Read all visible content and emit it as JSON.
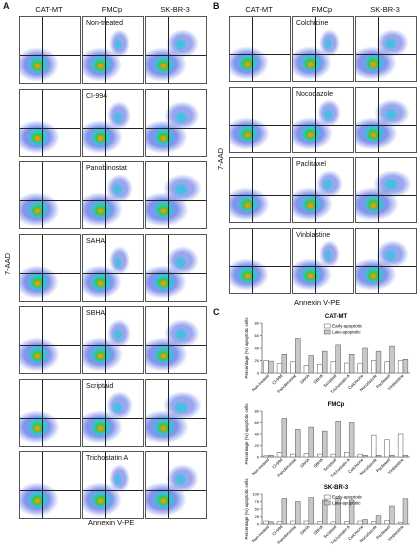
{
  "panelA": {
    "letter": "A",
    "columns": [
      "CAT-MT",
      "FMCp",
      "SK-BR-3"
    ],
    "rows": [
      "Non-treated",
      "CI-994",
      "Panobinostat",
      "SAHA",
      "SBHA",
      "Scriptaid",
      "Trichostatin A"
    ],
    "ylabel": "7-AAD",
    "xlabel": "Annexin V-PE"
  },
  "panelB": {
    "letter": "B",
    "columns": [
      "CAT-MT",
      "FMCp",
      "SK-BR-3"
    ],
    "rows": [
      "Colchicine",
      "Nocodazole",
      "Paclitaxel",
      "Vinblastine"
    ],
    "ylabel": "7-AAD",
    "xlabel": "Annexin V-PE"
  },
  "panelC": {
    "letter": "C"
  },
  "colors": {
    "early": "#ffffff",
    "late": "#c8c8c8",
    "stroke": "#555555"
  },
  "chart_data": [
    {
      "type": "bar",
      "title": "CAT-MT",
      "ylabel": "Percentage (%) apoptotic cells",
      "categories": [
        "Non-treated",
        "CI-994",
        "Panobinostat",
        "SAHA",
        "SBHA",
        "Scriptaid",
        "Trichostatin A",
        "Colchicine",
        "Nocodazole",
        "Paclitaxel",
        "Vinblastine"
      ],
      "series": [
        {
          "name": "Early-apoptotic",
          "values": [
            20,
            15,
            18,
            12,
            14,
            18,
            16,
            15,
            20,
            18,
            20
          ]
        },
        {
          "name": "Late-apoptotic",
          "values": [
            19,
            30,
            55,
            28,
            35,
            45,
            30,
            40,
            35,
            43,
            22
          ]
        }
      ],
      "ylim": [
        0,
        80
      ],
      "legend": "top-center"
    },
    {
      "type": "bar",
      "title": "FMCp",
      "ylabel": "Percentage (%) apoptotic cells",
      "categories": [
        "Non-treated",
        "CI-994",
        "Panobinostat",
        "SAHA",
        "SBHA",
        "Scriptaid",
        "Trichostatin A",
        "Colchicine",
        "Nocodazole",
        "Paclitaxel",
        "Vinblastine"
      ],
      "series": [
        {
          "name": "Early-apoptotic",
          "values": [
            2,
            8,
            5,
            6,
            5,
            5,
            8,
            5,
            38,
            30,
            40
          ]
        },
        {
          "name": "Late-apoptotic",
          "values": [
            3,
            67,
            48,
            52,
            45,
            62,
            60,
            3,
            3,
            3,
            3
          ]
        }
      ],
      "ylim": [
        0,
        80
      ],
      "legend": "none"
    },
    {
      "type": "bar",
      "title": "SK-BR-3",
      "ylabel": "Percentage (%) apoptotic cells",
      "categories": [
        "Non-treated",
        "CI-994",
        "Panobinostat",
        "SAHA",
        "SBHA",
        "Scriptaid",
        "Trichostatin A",
        "Colchicine",
        "Nocodazole",
        "Paclitaxel",
        "Vinblastine"
      ],
      "series": [
        {
          "name": "Early-apoptotic",
          "values": [
            10,
            8,
            10,
            10,
            8,
            7,
            8,
            10,
            8,
            12,
            6
          ]
        },
        {
          "name": "Late-apoptotic",
          "values": [
            8,
            85,
            75,
            88,
            80,
            85,
            80,
            15,
            28,
            60,
            84
          ]
        }
      ],
      "ylim": [
        0,
        100
      ],
      "legend": "top-center"
    }
  ]
}
